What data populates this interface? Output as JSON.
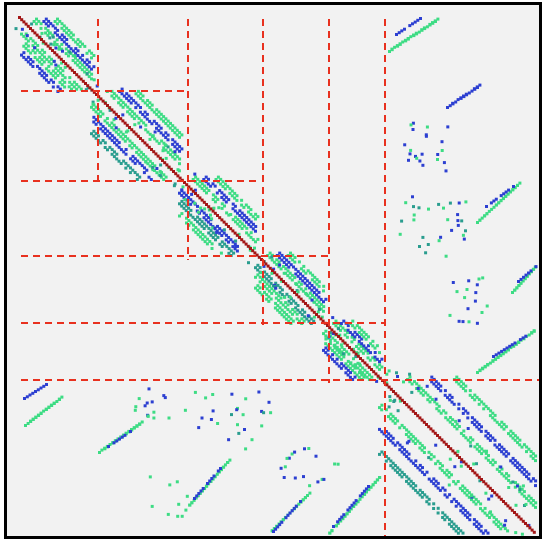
{
  "colors": {
    "background": "#f2f2f2",
    "frame": "#000000",
    "partition_line": "#e8311f",
    "diagonal_core": "#a31515",
    "band_green": "#3ddc84",
    "band_blue": "#2c3fd1",
    "band_teal": "#2a9d8f"
  },
  "matrix": {
    "description_kind": "sparse-matrix-nonzero-pattern",
    "partition_style": "dashed",
    "block_count": 6,
    "has_off_diagonal_coupling_blocks": true
  }
}
